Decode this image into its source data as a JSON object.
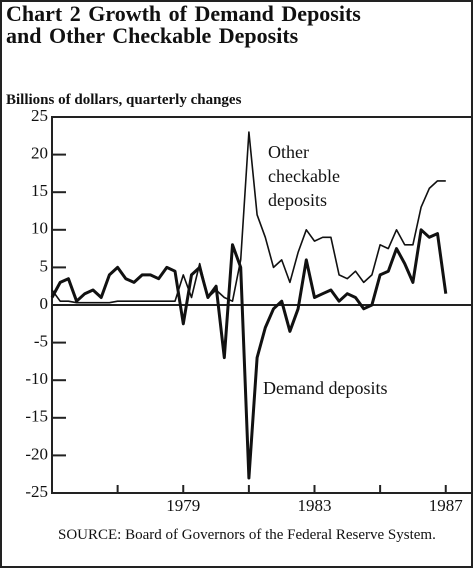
{
  "chart_data": {
    "type": "line",
    "title": "Chart 2   Growth of Demand Deposits and Other Checkable Deposits",
    "subtitle": "Billions of dollars, quarterly changes",
    "source": "SOURCE: Board of Governors of the Federal Reserve System.",
    "x": [
      1975,
      1975.25,
      1975.5,
      1975.75,
      1976,
      1976.25,
      1976.5,
      1976.75,
      1977,
      1977.25,
      1977.5,
      1977.75,
      1978,
      1978.25,
      1978.5,
      1978.75,
      1979,
      1979.25,
      1979.5,
      1979.75,
      1980,
      1980.25,
      1980.5,
      1980.75,
      1981,
      1981.25,
      1981.5,
      1981.75,
      1982,
      1982.25,
      1982.5,
      1982.75,
      1983,
      1983.25,
      1983.5,
      1983.75,
      1984,
      1984.25,
      1984.5,
      1984.75,
      1985,
      1985.25,
      1985.5,
      1985.75,
      1986,
      1986.25,
      1986.5,
      1986.75,
      1987
    ],
    "series": [
      {
        "name": "Demand deposits",
        "color": "#111111",
        "values": [
          1,
          3,
          3.5,
          0.5,
          1.5,
          2,
          1,
          4,
          5,
          3.5,
          3,
          4,
          4,
          3.5,
          5,
          4.5,
          -2.5,
          4,
          5,
          1,
          2.5,
          -7,
          8,
          5,
          -23,
          -7,
          -3,
          -0.5,
          0.5,
          -3.5,
          -0.5,
          6,
          1,
          1.5,
          2,
          0.5,
          1.5,
          1,
          -0.5,
          0,
          4,
          4.5,
          7.5,
          5.5,
          3,
          10,
          9,
          9.5,
          1.5
        ]
      },
      {
        "name": "Other checkable deposits",
        "color": "#111111",
        "values": [
          2,
          0.5,
          0.5,
          0.3,
          0.3,
          0.3,
          0.3,
          0.3,
          0.5,
          0.5,
          0.5,
          0.5,
          0.5,
          0.5,
          0.5,
          0.5,
          4,
          1,
          5.5,
          1,
          2,
          1,
          0.5,
          6,
          23,
          12,
          9,
          5,
          6,
          3,
          7,
          10,
          8.5,
          9,
          9,
          4,
          3.5,
          4.5,
          3,
          4,
          8,
          7.5,
          10,
          8,
          8,
          13,
          15.5,
          16.5,
          16.5
        ]
      }
    ],
    "xlim": [
      1975,
      1987.8
    ],
    "xticks": [
      1979,
      1983,
      1987
    ],
    "xminor_ticks": [
      1977,
      1981,
      1985
    ],
    "ylim": [
      -25,
      25
    ],
    "yticks": [
      -25,
      -20,
      -15,
      -10,
      -5,
      0,
      5,
      10,
      15,
      20,
      25
    ]
  }
}
